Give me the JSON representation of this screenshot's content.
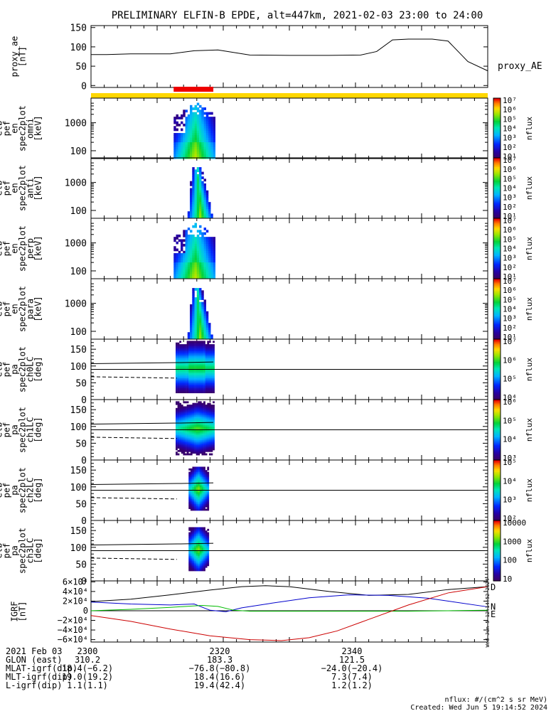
{
  "title": "PRELIMINARY ELFIN-B EPDE, alt=447km, 2021-02-03 23:00 to 24:00",
  "colors": {
    "yellow_bar": "#ffd700",
    "red_bar": "#ee0000",
    "north": "#0000cc",
    "east": "#00bb00",
    "down": "#cc0000"
  },
  "chart_data": [
    {
      "type": "line",
      "name": "proxy_ae",
      "ylabel_lines": [
        "proxy_ae",
        "[nT]"
      ],
      "legend": "proxy_AE",
      "ylim": [
        -5,
        155
      ],
      "yticks": [
        0,
        50,
        100,
        150
      ],
      "x": [
        0,
        4,
        10,
        20,
        26,
        32,
        40,
        50,
        60,
        68,
        72,
        76,
        80,
        86,
        90,
        95,
        100
      ],
      "values": [
        80,
        80,
        82,
        82,
        90,
        92,
        79,
        78,
        78,
        79,
        88,
        118,
        120,
        120,
        115,
        62,
        38
      ]
    },
    {
      "type": "heatmap",
      "name": "omni",
      "ylabel_lines": [
        "elb",
        "pef",
        "en",
        "spec2plot",
        "omni",
        "[keV]"
      ],
      "scale": "log",
      "yticks": [
        1000,
        100
      ],
      "ytick_labels": [
        "1000",
        "100"
      ],
      "cb_ticks": [
        "10⁷",
        "10⁶",
        "10⁵",
        "10⁴",
        "10³",
        "10²",
        "10¹"
      ],
      "cb_label": "nflux"
    },
    {
      "type": "heatmap",
      "name": "anti",
      "ylabel_lines": [
        "elb",
        "pef",
        "en",
        "spec2plot",
        "anti",
        "[keV]"
      ],
      "scale": "log",
      "yticks": [
        1000,
        100
      ],
      "ytick_labels": [
        "1000",
        "100"
      ],
      "cb_ticks": [
        "10⁷",
        "10⁶",
        "10⁵",
        "10⁴",
        "10³",
        "10²",
        "10¹"
      ],
      "cb_label": "nflux"
    },
    {
      "type": "heatmap",
      "name": "perp",
      "ylabel_lines": [
        "elb",
        "pef",
        "en",
        "spec2plot",
        "perp",
        "[keV]"
      ],
      "scale": "log",
      "yticks": [
        1000,
        100
      ],
      "ytick_labels": [
        "1000",
        "100"
      ],
      "cb_ticks": [
        "10⁷",
        "10⁶",
        "10⁵",
        "10⁴",
        "10³",
        "10²",
        "10¹"
      ],
      "cb_label": "nflux"
    },
    {
      "type": "heatmap",
      "name": "para",
      "ylabel_lines": [
        "elb",
        "pef",
        "en",
        "spec2plot",
        "para",
        "[keV]"
      ],
      "scale": "log",
      "yticks": [
        1000,
        100
      ],
      "ytick_labels": [
        "1000",
        "100"
      ],
      "cb_ticks": [
        "10⁷",
        "10⁶",
        "10⁵",
        "10⁴",
        "10³",
        "10²",
        "10¹"
      ],
      "cb_label": "nflux"
    },
    {
      "type": "heatmap",
      "name": "ch0LC",
      "ylabel_lines": [
        "elb",
        "pef",
        "pa",
        "spec2plot",
        "ch0LC",
        "[deg]"
      ],
      "ylim": [
        0,
        180
      ],
      "yticks": [
        0,
        50,
        100,
        150
      ],
      "cb_ticks": [
        "10⁷",
        "10⁶",
        "10⁵",
        "10⁴"
      ],
      "cb_label": "nflux"
    },
    {
      "type": "heatmap",
      "name": "ch1LC",
      "ylabel_lines": [
        "elb",
        "pef",
        "pa",
        "spec2plot",
        "ch1LC",
        "[deg]"
      ],
      "ylim": [
        0,
        180
      ],
      "yticks": [
        0,
        50,
        100,
        150
      ],
      "cb_ticks": [
        "10⁶",
        "10⁵",
        "10⁴",
        "10³"
      ],
      "cb_label": "nflux"
    },
    {
      "type": "heatmap",
      "name": "ch2LC",
      "ylabel_lines": [
        "elb",
        "pef",
        "pa",
        "spec2plot",
        "ch2LC",
        "[deg]"
      ],
      "ylim": [
        0,
        180
      ],
      "yticks": [
        0,
        50,
        100,
        150
      ],
      "cb_ticks": [
        "10⁵",
        "10⁴",
        "10³",
        "10²"
      ],
      "cb_label": "nflux"
    },
    {
      "type": "heatmap",
      "name": "ch3LC",
      "ylabel_lines": [
        "elb",
        "pef",
        "pa",
        "spec2plot",
        "ch3LC",
        "[deg]"
      ],
      "ylim": [
        0,
        180
      ],
      "yticks": [
        0,
        50,
        100,
        150
      ],
      "cb_ticks": [
        "10000",
        "1000",
        "100",
        "10"
      ],
      "cb_label": "nflux"
    },
    {
      "type": "line",
      "name": "IGRF",
      "ylabel_lines": [
        "IGRF",
        "[nT]"
      ],
      "ylim": [
        -65000,
        62000
      ],
      "yticks": [
        60000,
        40000,
        20000,
        0,
        -20000,
        -40000,
        -60000
      ],
      "ytick_labels": [
        "6×10⁴",
        "4×10⁴",
        "2×10⁴",
        "0",
        "−2×10⁴",
        "−4×10⁴",
        "−6×10⁴"
      ],
      "series": [
        {
          "name": "total",
          "color": "#000000",
          "x": [
            0,
            10,
            20,
            30,
            38,
            44,
            50,
            60,
            70,
            80,
            90,
            100
          ],
          "values": [
            19000,
            24000,
            33000,
            43000,
            50000,
            52000,
            50000,
            40000,
            32000,
            34000,
            44000,
            50000
          ]
        },
        {
          "name": "N",
          "color": "#0000cc",
          "x": [
            0,
            10,
            20,
            26,
            30,
            34,
            38,
            45,
            55,
            65,
            75,
            85,
            100
          ],
          "values": [
            18000,
            14000,
            12000,
            14000,
            1000,
            -2000,
            6000,
            15000,
            27000,
            33000,
            32000,
            26000,
            8000
          ]
        },
        {
          "name": "E",
          "color": "#00bb00",
          "x": [
            0,
            10,
            20,
            28,
            32,
            36,
            40,
            50,
            60,
            70,
            80,
            90,
            100
          ],
          "values": [
            0,
            3000,
            7000,
            11000,
            9000,
            1000,
            -1000,
            -1000,
            -1000,
            -1000,
            -1000,
            0,
            1000
          ]
        },
        {
          "name": "D",
          "color": "#cc0000",
          "x": [
            0,
            10,
            20,
            30,
            40,
            48,
            55,
            62,
            70,
            80,
            90,
            100
          ],
          "values": [
            -10000,
            -22000,
            -38000,
            -52000,
            -60000,
            -62000,
            -56000,
            -42000,
            -18000,
            12000,
            37000,
            50000
          ]
        }
      ],
      "labels": {
        "N": "N",
        "E": "E",
        "D": "D"
      },
      "side_text": "Wed Jun  5 12:14:52 2024"
    }
  ],
  "time_axis": {
    "ticks": [
      "2300",
      "2320",
      "2340"
    ],
    "tick_min": [
      0,
      20,
      40
    ],
    "red_bar_min": [
      12.5,
      18.5
    ]
  },
  "footer": {
    "rows": [
      {
        "label": "2021 Feb 03",
        "values": [
          "2300",
          "2320",
          "2340"
        ]
      },
      {
        "label": "GLON (east)",
        "values": [
          "310.2",
          "183.3",
          "121.5"
        ]
      },
      {
        "label": "MLAT-igrf(dip)",
        "values": [
          "18.4(−6.2)",
          "−76.8(−80.8)",
          "−24.0(−20.4)"
        ]
      },
      {
        "label": "MLT-igrf(dip)",
        "values": [
          "19.0(19.2)",
          "18.4(16.6)",
          "7.3(7.4)"
        ]
      },
      {
        "label": "L-igrf(dip)",
        "values": [
          "1.1(1.1)",
          "19.4(42.4)",
          "1.2(1.2)"
        ]
      }
    ],
    "nflux_units": "nflux: #/(cm^2 s sr MeV)",
    "created": "Created: Wed Jun  5 19:14:52 2024"
  }
}
